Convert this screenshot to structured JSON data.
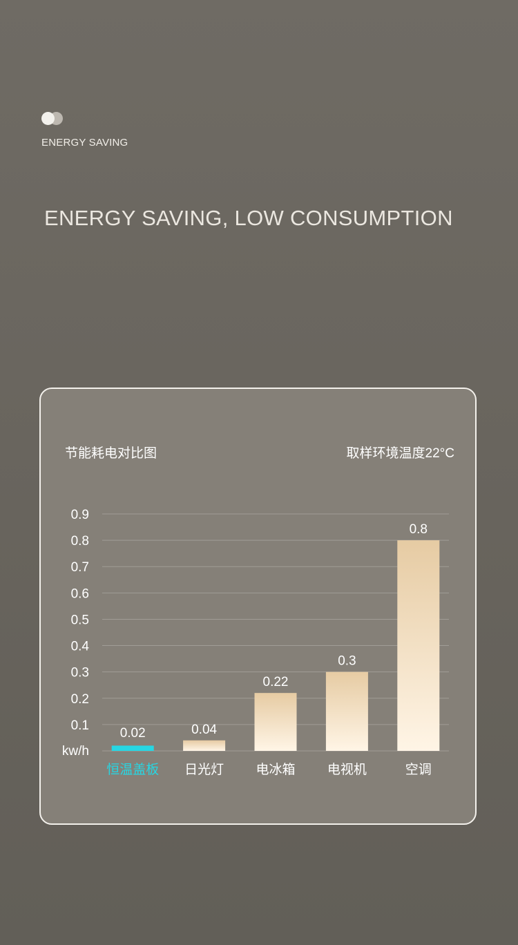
{
  "header": {
    "kicker": "ENERGY SAVING",
    "headline": "ENERGY SAVING, LOW CONSUMPTION"
  },
  "chart_data": {
    "type": "bar",
    "title": "节能耗电对比图",
    "subtitle": "取样环境温度22°C",
    "ylabel": "kw/h",
    "ylim": [
      0,
      0.9
    ],
    "yticks": [
      "0.9",
      "0.8",
      "0.7",
      "0.6",
      "0.5",
      "0.4",
      "0.3",
      "0.2",
      "0.1"
    ],
    "categories": [
      "恒温盖板",
      "日光灯",
      "电冰箱",
      "电视机",
      "空调"
    ],
    "values": [
      0.02,
      0.04,
      0.22,
      0.3,
      0.8
    ],
    "value_labels": [
      "0.02",
      "0.04",
      "0.22",
      "0.3",
      "0.8"
    ],
    "grid": true,
    "colors": {
      "highlight": "#26d6e3",
      "bar_top": "#e6cba3",
      "bar_bottom": "#fff5e6",
      "grid": "#a19d96",
      "text": "#ffffff"
    }
  }
}
